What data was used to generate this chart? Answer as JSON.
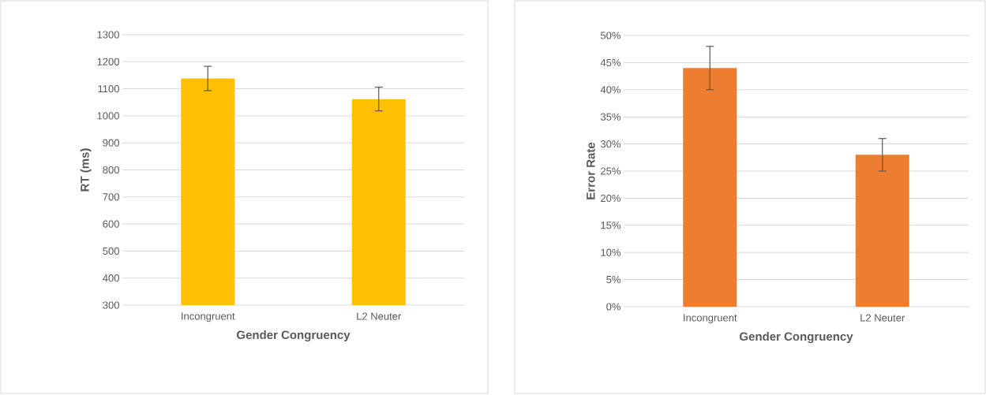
{
  "chart_data": [
    {
      "type": "bar",
      "categories": [
        "Incongruent",
        "L2 Neuter"
      ],
      "values": [
        1138,
        1062
      ],
      "errors": [
        45,
        44
      ],
      "color": "#ffc000",
      "xlabel": "Gender Congruency",
      "ylabel": "RT (ms)",
      "ylim": [
        300,
        1300
      ],
      "yticks": [
        300,
        400,
        500,
        600,
        700,
        800,
        900,
        1000,
        1100,
        1200,
        1300
      ],
      "grid": "y"
    },
    {
      "type": "bar",
      "categories": [
        "Incongruent",
        "L2 Neuter"
      ],
      "values": [
        44,
        28
      ],
      "errors": [
        4,
        3
      ],
      "color": "#ed7d31",
      "xlabel": "Gender Congruency",
      "ylabel": "Error Rate",
      "ylim": [
        0,
        50
      ],
      "yticks": [
        {
          "value": 0,
          "label": "0%"
        },
        {
          "value": 5,
          "label": "5%"
        },
        {
          "value": 10,
          "label": "10%"
        },
        {
          "value": 15,
          "label": "15%"
        },
        {
          "value": 20,
          "label": "20%"
        },
        {
          "value": 25,
          "label": "25%"
        },
        {
          "value": 30,
          "label": "30%"
        },
        {
          "value": 35,
          "label": "35%"
        },
        {
          "value": 40,
          "label": "40%"
        },
        {
          "value": 45,
          "label": "45%"
        },
        {
          "value": 50,
          "label": "50%"
        }
      ],
      "grid": "y"
    }
  ]
}
